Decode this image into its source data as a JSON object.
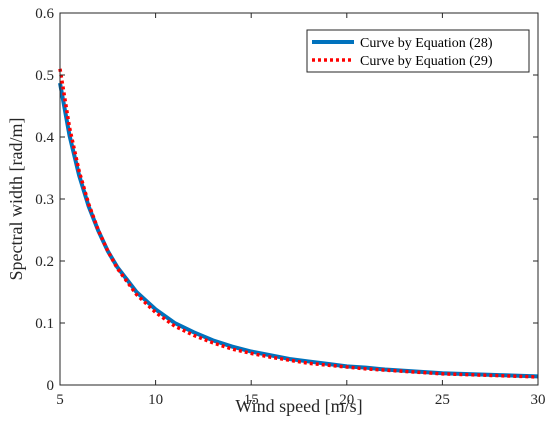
{
  "chart_data": {
    "type": "line",
    "xlabel": "Wind speed [m/s]",
    "ylabel": "Spectral width [rad/m]",
    "xlim": [
      5,
      30
    ],
    "ylim": [
      0,
      0.6
    ],
    "x_ticks": [
      "5",
      "10",
      "15",
      "20",
      "25",
      "30"
    ],
    "y_ticks": [
      "0",
      "0.1",
      "0.2",
      "0.3",
      "0.4",
      "0.5",
      "0.6"
    ],
    "grid": false,
    "legend_position": "top-right",
    "series": [
      {
        "name": "Curve by Equation (28)",
        "color": "#0072BD",
        "style": "solid",
        "x": [
          5,
          5.5,
          6,
          6.5,
          7,
          7.5,
          8,
          9,
          10,
          11,
          12,
          13,
          14,
          15,
          16,
          17,
          18,
          19,
          20,
          21,
          22,
          23,
          24,
          25,
          26,
          27,
          28,
          29,
          30
        ],
        "y": [
          0.487,
          0.402,
          0.338,
          0.288,
          0.249,
          0.216,
          0.19,
          0.15,
          0.122,
          0.1,
          0.085,
          0.072,
          0.062,
          0.054,
          0.048,
          0.042,
          0.038,
          0.034,
          0.03,
          0.028,
          0.025,
          0.023,
          0.021,
          0.019,
          0.018,
          0.017,
          0.016,
          0.015,
          0.014
        ]
      },
      {
        "name": "Curve by Equation (29)",
        "color": "#FF0000",
        "style": "dotted",
        "x": [
          5,
          5.5,
          6,
          6.5,
          7,
          7.5,
          8,
          9,
          10,
          11,
          12,
          13,
          14,
          15,
          16,
          17,
          18,
          19,
          20,
          21,
          22,
          23,
          24,
          25,
          26,
          27,
          28,
          29,
          30
        ],
        "y": [
          0.51,
          0.415,
          0.345,
          0.292,
          0.25,
          0.216,
          0.188,
          0.146,
          0.117,
          0.095,
          0.08,
          0.068,
          0.058,
          0.051,
          0.045,
          0.04,
          0.035,
          0.032,
          0.029,
          0.026,
          0.024,
          0.022,
          0.02,
          0.018,
          0.017,
          0.016,
          0.015,
          0.014,
          0.013
        ]
      }
    ]
  }
}
